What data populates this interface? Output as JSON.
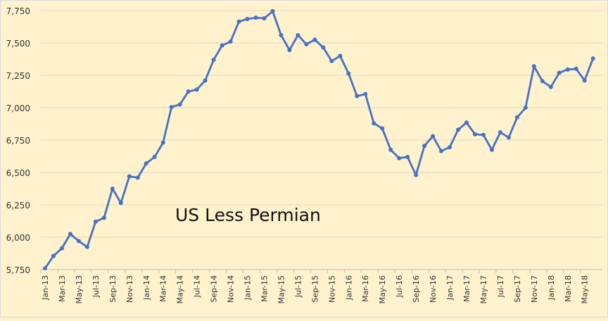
{
  "chart_data": {
    "type": "line",
    "title": "",
    "annotation": "US Less Permian",
    "xlabel": "",
    "ylabel": "",
    "ylim": [
      5750,
      7750
    ],
    "yticks": [
      5750,
      6000,
      6250,
      6500,
      6750,
      7000,
      7250,
      7500,
      7750
    ],
    "ytick_labels": [
      "5,750",
      "6,000",
      "6,250",
      "6,500",
      "6,750",
      "7,000",
      "7,250",
      "7,500",
      "7,750"
    ],
    "grid": true,
    "legend": "none",
    "line_color": "#4472c4",
    "background_color": "#fff2cc",
    "x": [
      "Jan-13",
      "Feb-13",
      "Mar-13",
      "Apr-13",
      "May-13",
      "Jun-13",
      "Jul-13",
      "Aug-13",
      "Sep-13",
      "Oct-13",
      "Nov-13",
      "Dec-13",
      "Jan-14",
      "Feb-14",
      "Mar-14",
      "Apr-14",
      "May-14",
      "Jun-14",
      "Jul-14",
      "Aug-14",
      "Sep-14",
      "Oct-14",
      "Nov-14",
      "Dec-14",
      "Jan-15",
      "Feb-15",
      "Mar-15",
      "Apr-15",
      "May-15",
      "Jun-15",
      "Jul-15",
      "Aug-15",
      "Sep-15",
      "Oct-15",
      "Nov-15",
      "Dec-15",
      "Jan-16",
      "Feb-16",
      "Mar-16",
      "Apr-16",
      "May-16",
      "Jun-16",
      "Jul-16",
      "Aug-16",
      "Sep-16",
      "Oct-16",
      "Nov-16",
      "Dec-16",
      "Jan-17",
      "Feb-17",
      "Mar-17",
      "Apr-17",
      "May-17",
      "Jun-17",
      "Jul-17",
      "Aug-17",
      "Sep-17",
      "Oct-17",
      "Nov-17",
      "Dec-17",
      "Jan-18",
      "Feb-18",
      "Mar-18",
      "Apr-18",
      "May-18",
      "Jun-18"
    ],
    "series": [
      {
        "name": "US Less Permian",
        "values": [
          5760,
          5855,
          5915,
          6025,
          5970,
          5925,
          6120,
          6150,
          6375,
          6265,
          6470,
          6460,
          6570,
          6620,
          6730,
          7005,
          7025,
          7125,
          7140,
          7210,
          7370,
          7480,
          7510,
          7665,
          7685,
          7695,
          7690,
          7745,
          7560,
          7445,
          7560,
          7490,
          7525,
          7465,
          7360,
          7400,
          7265,
          7090,
          7105,
          6880,
          6840,
          6675,
          6610,
          6620,
          6480,
          6705,
          6780,
          6665,
          6695,
          6830,
          6885,
          6795,
          6790,
          6675,
          6810,
          6770,
          6925,
          7000,
          7320,
          7205,
          7160,
          7270,
          7295,
          7300,
          7210,
          7380
        ]
      }
    ]
  }
}
